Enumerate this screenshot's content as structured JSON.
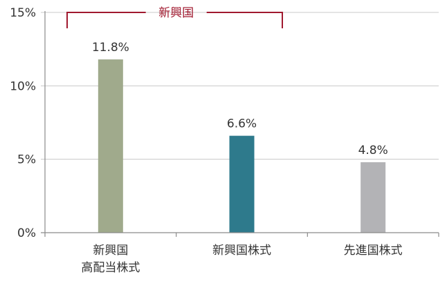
{
  "chart_data": {
    "type": "bar",
    "categories": [
      [
        "新興国",
        "高配当株式"
      ],
      [
        "新興国株式"
      ],
      [
        "先進国株式"
      ]
    ],
    "values": [
      11.8,
      6.6,
      4.8
    ],
    "value_labels": [
      "11.8%",
      "6.6%",
      "4.8%"
    ],
    "bar_colors": [
      "#a0aa8c",
      "#2e7a8c",
      "#b3b3b6"
    ],
    "ylim": [
      0,
      15
    ],
    "yticks": [
      0,
      5,
      10,
      15
    ],
    "ytick_labels": [
      "0%",
      "5%",
      "10%",
      "15%"
    ],
    "grid": true,
    "group_bracket": {
      "label": "新興国",
      "color": "#a0182e",
      "span_categories": [
        0,
        1
      ]
    }
  }
}
